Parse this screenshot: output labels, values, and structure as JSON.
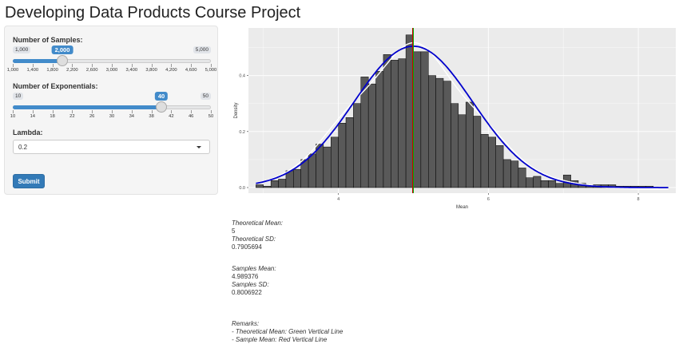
{
  "page_title": "Developing Data Products Course Project",
  "samples": {
    "label": "Number of Samples:",
    "min_label": "1,000",
    "max_label": "5,000",
    "value_label": "2,000",
    "min": 1000,
    "max": 5000,
    "value": 2000,
    "ticks": [
      "1,000",
      "1,400",
      "1,800",
      "2,200",
      "2,600",
      "3,000",
      "3,400",
      "3,800",
      "4,200",
      "4,600",
      "5,000"
    ]
  },
  "exponentials": {
    "label": "Number of Exponentials:",
    "min_label": "10",
    "max_label": "50",
    "value_label": "40",
    "min": 10,
    "max": 50,
    "value": 40,
    "ticks": [
      "10",
      "14",
      "18",
      "22",
      "26",
      "30",
      "34",
      "38",
      "42",
      "46",
      "50"
    ]
  },
  "lambda": {
    "label": "Lambda:",
    "selected": "0.2"
  },
  "submit_label": "Submit",
  "stats": {
    "theo_mean_label": "Theoretical Mean:",
    "theo_mean_value": "5",
    "theo_sd_label": "Theoretical SD:",
    "theo_sd_value": "0.7905694",
    "sample_mean_label": "Samples Mean:",
    "sample_mean_value": "4.989376",
    "sample_sd_label": "Samples SD:",
    "sample_sd_value": "0.8006922",
    "remarks_label": "Remarks:",
    "remark1": "- Theoretical Mean: Green Vertical Line",
    "remark2": "- Sample Mean: Red Vertical Line"
  },
  "colors": {
    "accent": "#428bca",
    "bar_fill": "#595959",
    "normal_curve": "#0000cc",
    "density_curve": "#ffffff",
    "theo_line": "#00b000",
    "sample_line": "#cc0000",
    "panel_bg": "#ebebeb"
  },
  "chart_data": {
    "type": "bar",
    "xlabel": "Mean",
    "ylabel": "Density",
    "xlim": [
      2.8,
      8.5
    ],
    "ylim": [
      -0.02,
      0.57
    ],
    "x_ticks": [
      4,
      6,
      8
    ],
    "y_ticks": [
      0.0,
      0.2,
      0.4
    ],
    "y_tick_labels": [
      "0.0",
      "0.2",
      "0.4"
    ],
    "x_tick_labels": [
      "4",
      "6",
      "8"
    ],
    "bin_start": 2.9,
    "bin_width": 0.1,
    "bar_values": [
      0.01,
      0.005,
      0.025,
      0.03,
      0.06,
      0.065,
      0.1,
      0.12,
      0.155,
      0.145,
      0.18,
      0.23,
      0.25,
      0.3,
      0.395,
      0.37,
      0.415,
      0.475,
      0.455,
      0.46,
      0.545,
      0.485,
      0.485,
      0.4,
      0.39,
      0.38,
      0.3,
      0.26,
      0.305,
      0.255,
      0.19,
      0.18,
      0.15,
      0.1,
      0.095,
      0.07,
      0.035,
      0.04,
      0.025,
      0.025,
      0.015,
      0.045,
      0.025,
      0.015,
      0.005,
      0.01,
      0.01,
      0.01,
      0.005,
      0.005,
      0.005,
      0.005,
      0.005
    ],
    "theoretical_mean": 5,
    "theoretical_sd": 0.7905694,
    "sample_mean": 4.989376,
    "sample_sd": 0.8006922
  }
}
